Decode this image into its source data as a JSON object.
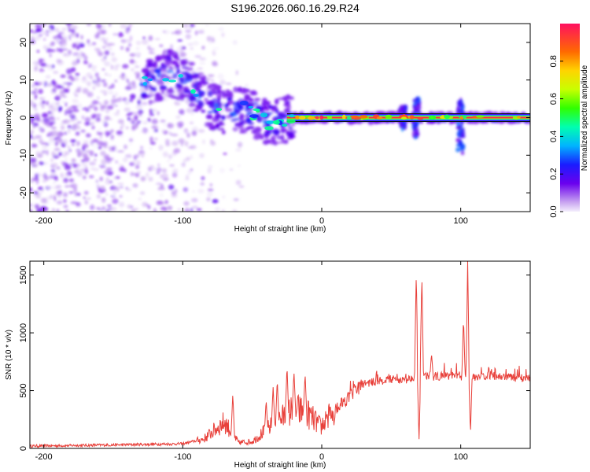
{
  "title": "S196.2026.060.16.29.R24",
  "chart_data": [
    {
      "type": "heatmap",
      "name": "spectrogram",
      "xlabel": "Height of straight line (km)",
      "ylabel": "Frequency (Hz)",
      "xlim": [
        -210,
        150
      ],
      "ylim": [
        -25,
        25
      ],
      "xticks": [
        -200,
        -100,
        0,
        100
      ],
      "yticks": [
        -20,
        -10,
        0,
        10,
        20
      ],
      "colorbar": {
        "label": "Normalized spectral amplitude",
        "range": [
          0,
          1
        ],
        "ticks": [
          0.0,
          0.2,
          0.4,
          0.6,
          0.8
        ]
      },
      "ridge": {
        "x": [
          -210,
          -160,
          -120,
          -110,
          -95,
          -80,
          -70,
          -55,
          -40,
          -30,
          -20,
          0,
          20,
          40,
          60,
          70,
          100,
          150
        ],
        "freq": [
          5,
          7,
          10,
          12,
          9,
          3,
          2,
          2,
          -1,
          -1,
          0,
          0,
          0,
          0,
          0,
          0,
          0,
          0
        ]
      }
    },
    {
      "type": "line",
      "name": "snr",
      "xlabel": "Height of straight line (km)",
      "ylabel": "SNR (10 * v/v)",
      "xlim": [
        -210,
        150
      ],
      "ylim": [
        0,
        1620
      ],
      "xticks": [
        -200,
        -100,
        0,
        100
      ],
      "yticks": [
        0,
        500,
        1000,
        1500
      ],
      "color": "#e8403a",
      "envelope": {
        "x": [
          -210,
          -150,
          -100,
          -85,
          -75,
          -70,
          -60,
          -50,
          -40,
          -30,
          -20,
          -10,
          0,
          10,
          20,
          30,
          40,
          50,
          60,
          70,
          80,
          90,
          100,
          110,
          120,
          130,
          140,
          150
        ],
        "y": [
          20,
          30,
          40,
          80,
          180,
          230,
          50,
          60,
          160,
          250,
          340,
          300,
          180,
          350,
          450,
          560,
          580,
          600,
          590,
          640,
          620,
          630,
          620,
          620,
          630,
          620,
          610,
          610
        ]
      },
      "spikes": [
        {
          "x": -64,
          "y": 470
        },
        {
          "x": -40,
          "y": 420
        },
        {
          "x": -35,
          "y": 530
        },
        {
          "x": -32,
          "y": 600
        },
        {
          "x": -25,
          "y": 720
        },
        {
          "x": -20,
          "y": 660
        },
        {
          "x": -12,
          "y": 650
        },
        {
          "x": 68,
          "y": 1530
        },
        {
          "x": 70,
          "y": 80
        },
        {
          "x": 72,
          "y": 1510
        },
        {
          "x": 79,
          "y": 820
        },
        {
          "x": 102,
          "y": 1130
        },
        {
          "x": 105,
          "y": 1620
        },
        {
          "x": 107,
          "y": 120
        }
      ]
    }
  ]
}
